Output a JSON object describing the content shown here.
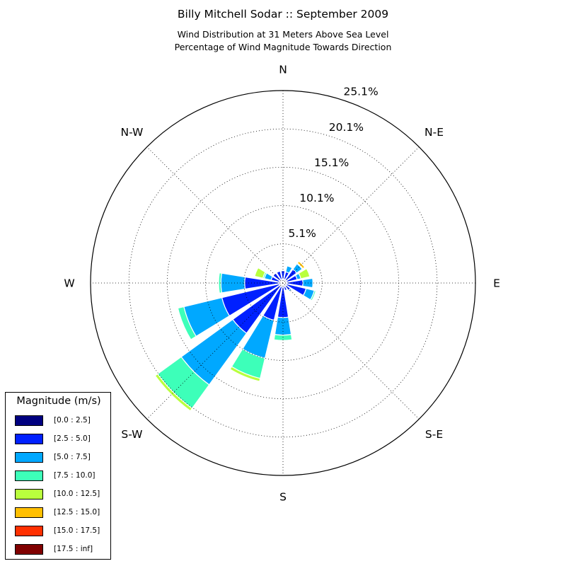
{
  "header": {
    "title": "Billy Mitchell Sodar :: September 2009",
    "subtitle_line1": "Wind Distribution at 31 Meters Above Sea Level",
    "subtitle_line2": "Percentage of Wind Magnitude Towards Direction"
  },
  "chart_data": {
    "type": "windrose",
    "radial_max_percent": 25.1,
    "radial_ticks": [
      "5.1%",
      "10.1%",
      "15.1%",
      "20.1%",
      "25.1%"
    ],
    "radial_tick_values": [
      5.1,
      10.1,
      15.1,
      20.1,
      25.1
    ],
    "direction_labels": [
      "N",
      "N-E",
      "E",
      "S-E",
      "S",
      "S-W",
      "W",
      "N-W"
    ],
    "sector_count": 16,
    "sector_directions_deg": [
      0,
      22.5,
      45,
      67.5,
      90,
      112.5,
      135,
      157.5,
      180,
      202.5,
      225,
      247.5,
      270,
      292.5,
      315,
      337.5
    ],
    "bins": [
      {
        "label": "[0.0 : 2.5]",
        "color": "#000080"
      },
      {
        "label": "[2.5 : 5.0]",
        "color": "#0020ff"
      },
      {
        "label": "[5.0 : 7.5]",
        "color": "#00a8ff"
      },
      {
        "label": "[7.5 : 10.0]",
        "color": "#3dffb9"
      },
      {
        "label": "[10.0 : 12.5]",
        "color": "#b9ff3d"
      },
      {
        "label": "[12.5 : 15.0]",
        "color": "#ffbf00"
      },
      {
        "label": "[15.0 : 17.5]",
        "color": "#ff3000"
      },
      {
        "label": "[17.5 : inf]",
        "color": "#800000"
      }
    ],
    "cumulative_percent_by_sector": [
      [
        0.5,
        1.6,
        1.6,
        1.6,
        1.6,
        1.6,
        1.6,
        1.6
      ],
      [
        0.5,
        1.5,
        2.3,
        2.3,
        2.3,
        2.3,
        2.3,
        2.3
      ],
      [
        0.5,
        2.2,
        3.1,
        3.1,
        3.2,
        3.5,
        3.5,
        3.5
      ],
      [
        0.5,
        1.9,
        2.4,
        2.4,
        3.6,
        3.6,
        3.6,
        3.6
      ],
      [
        0.5,
        2.6,
        3.9,
        3.9,
        3.9,
        3.9,
        3.9,
        3.9
      ],
      [
        0.5,
        3.1,
        4.2,
        4.4,
        4.4,
        4.4,
        4.4,
        4.4
      ],
      [
        0.5,
        1.2,
        1.4,
        1.4,
        1.4,
        1.4,
        1.4,
        1.4
      ],
      [
        0.5,
        1.0,
        1.0,
        1.0,
        1.0,
        1.0,
        1.0,
        1.0
      ],
      [
        0.5,
        4.5,
        6.8,
        7.5,
        7.5,
        7.5,
        7.5,
        7.5
      ],
      [
        0.5,
        5.0,
        10.1,
        12.8,
        13.2,
        13.2,
        13.2,
        13.2
      ],
      [
        0.5,
        8.1,
        16.4,
        20.2,
        20.6,
        20.6,
        20.6,
        20.6
      ],
      [
        0.5,
        8.2,
        13.3,
        14.1,
        14.1,
        14.1,
        14.1,
        14.1
      ],
      [
        0.5,
        5.0,
        8.1,
        8.4,
        8.4,
        8.4,
        8.4,
        8.4
      ],
      [
        0.5,
        1.6,
        2.5,
        2.7,
        3.8,
        3.8,
        3.8,
        3.8
      ],
      [
        0.5,
        1.6,
        1.6,
        1.6,
        1.6,
        1.6,
        1.6,
        1.6
      ],
      [
        0.5,
        1.6,
        1.6,
        1.6,
        1.6,
        1.6,
        1.6,
        1.6
      ]
    ],
    "grid": true
  },
  "legend": {
    "title": "Magnitude (m/s)",
    "placement": "bottom-left"
  }
}
